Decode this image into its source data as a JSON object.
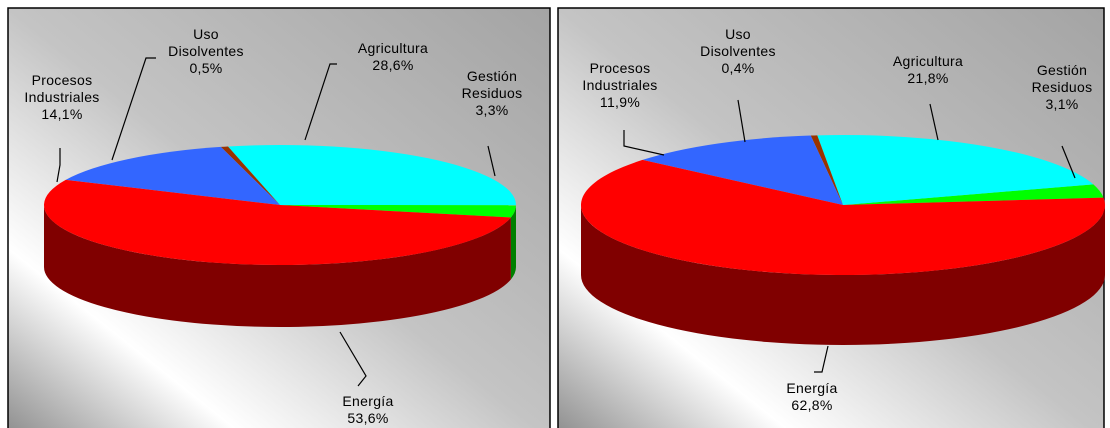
{
  "chart_data": [
    {
      "type": "pie",
      "categories": [
        "Gestión Residuos",
        "Agricultura",
        "Uso Disolventes",
        "Procesos Industriales",
        "Energía"
      ],
      "values": [
        3.3,
        28.6,
        0.5,
        14.1,
        53.6
      ],
      "value_labels": [
        "3,3%",
        "28,6%",
        "0,5%",
        "14,1%",
        "53,6%"
      ],
      "colors": [
        "#00ff00",
        "#00ffff",
        "#993300",
        "#3366ff",
        "#ff0000"
      ]
    },
    {
      "type": "pie",
      "categories": [
        "Gestión Residuos",
        "Agricultura",
        "Uso Disolventes",
        "Procesos Industriales",
        "Energía"
      ],
      "values": [
        3.1,
        21.8,
        0.4,
        11.9,
        62.8
      ],
      "value_labels": [
        "3,1%",
        "21,8%",
        "0,4%",
        "11,9%",
        "62,8%"
      ],
      "colors": [
        "#00ff00",
        "#00ffff",
        "#993300",
        "#3366ff",
        "#ff0000"
      ]
    }
  ]
}
